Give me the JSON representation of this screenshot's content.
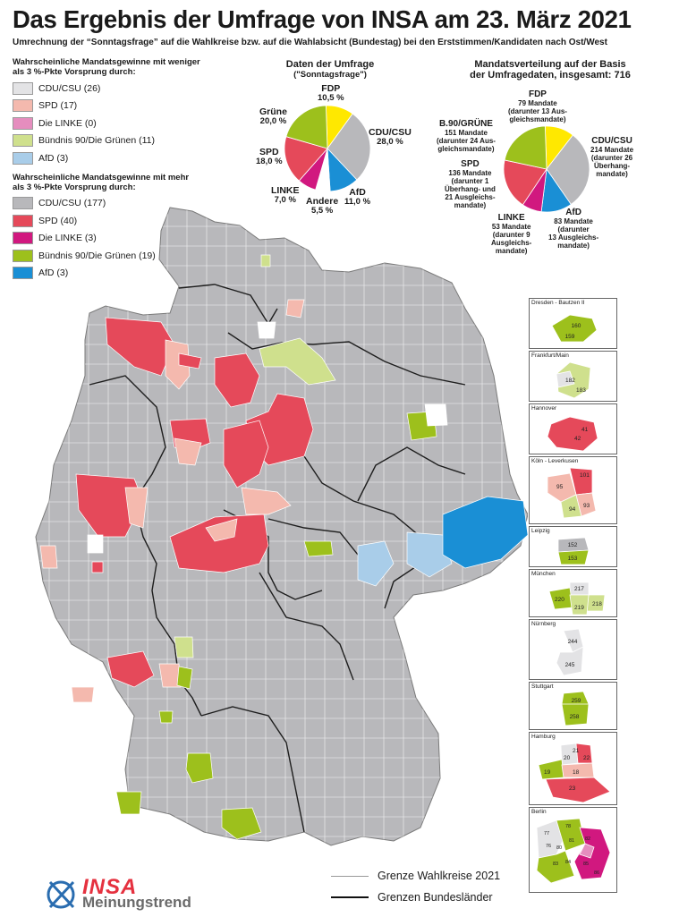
{
  "title": "Das Ergebnis der Umfrage von INSA am 23. März 2021",
  "subtitle": "Umrechnung der “Sonntagsfrage” auf die Wahlkreise bzw. auf die Wahlabsicht (Bundestag) bei den Erststimmen/Kandidaten nach Ost/West",
  "legend": {
    "under_heading": "Wahrscheinliche Mandatsgewinne mit weniger als 3 %-Pkte Vorsprung durch:",
    "under_items": [
      {
        "label": "CDU/CSU (26)",
        "color": "#e3e3e5"
      },
      {
        "label": "SPD (17)",
        "color": "#f4b9ae"
      },
      {
        "label": "Die LINKE (0)",
        "color": "#e58dbe"
      },
      {
        "label": "Bündnis 90/Die Grünen (11)",
        "color": "#cfe08d"
      },
      {
        "label": "AfD (3)",
        "color": "#a9cde9"
      }
    ],
    "over_heading": "Wahrscheinliche Mandatsgewinne mit mehr als 3 %-Pkte Vorsprung durch:",
    "over_items": [
      {
        "label": "CDU/CSU (177)",
        "color": "#b8b8bb"
      },
      {
        "label": "SPD (40)",
        "color": "#e5495a"
      },
      {
        "label": "Die LINKE (3)",
        "color": "#d1187f"
      },
      {
        "label": "Bündnis 90/Die Grünen (19)",
        "color": "#9dc01c"
      },
      {
        "label": "AfD (3)",
        "color": "#1a8fd5"
      }
    ]
  },
  "pie1": {
    "title_line1": "Daten der Umfrage",
    "title_line2": "(\"Sonntagsfrage\")",
    "labels": {
      "fdp": {
        "name": "FDP",
        "value": "10,5 %"
      },
      "cdu": {
        "name": "CDU/CSU",
        "value": "28,0 %"
      },
      "afd": {
        "name": "AfD",
        "value": "11,0 %"
      },
      "andere": {
        "name": "Andere",
        "value": "5,5 %"
      },
      "linke": {
        "name": "LINKE",
        "value": "7,0 %"
      },
      "spd": {
        "name": "SPD",
        "value": "18,0 %"
      },
      "gruene": {
        "name": "Grüne",
        "value": "20,0 %"
      }
    }
  },
  "pie2": {
    "title_line1": "Mandatsverteilung auf der Basis",
    "title_line2": "der Umfragedaten, insgesamt: 716",
    "labels": {
      "fdp": {
        "name": "FDP",
        "l1": "79 Mandate",
        "l2": "(darunter 13 Aus-",
        "l3": "gleichsmandate)"
      },
      "cdu": {
        "name": "CDU/CSU",
        "l1": "214 Mandate",
        "l2": "(darunter 26",
        "l3": "Überhang-",
        "l4": "mandate)"
      },
      "afd": {
        "name": "AfD",
        "l1": "83 Mandate",
        "l2": "(darunter",
        "l3": "13 Ausgleichs-",
        "l4": "mandate)"
      },
      "linke": {
        "name": "LINKE",
        "l1": "53 Mandate",
        "l2": "(darunter 9",
        "l3": "Ausgleichs-",
        "l4": "mandate)"
      },
      "spd": {
        "name": "SPD",
        "l1": "136 Mandate",
        "l2": "(darunter 1",
        "l3": "Überhang- und",
        "l4": "21 Ausgleichs-",
        "l5": "mandate)"
      },
      "gruene": {
        "name": "B.90/GRÜNE",
        "l1": "151 Mandate",
        "l2": "(darunter 24 Aus-",
        "l3": "gleichsmandate)"
      }
    }
  },
  "chart_data": [
    {
      "type": "pie",
      "title": "Daten der Umfrage (\"Sonntagsfrage\")",
      "categories": [
        "FDP",
        "CDU/CSU",
        "AfD",
        "Andere",
        "LINKE",
        "SPD",
        "Grüne"
      ],
      "values": [
        10.5,
        28.0,
        11.0,
        5.5,
        7.0,
        18.0,
        20.0
      ],
      "colors": [
        "#ffe800",
        "#b8b8bb",
        "#1a8fd5",
        "#ffffff",
        "#d1187f",
        "#e5495a",
        "#9dc01c"
      ]
    },
    {
      "type": "pie",
      "title": "Mandatsverteilung auf der Basis der Umfragedaten, insgesamt: 716",
      "categories": [
        "FDP",
        "CDU/CSU",
        "AfD",
        "LINKE",
        "SPD",
        "B.90/GRÜNE"
      ],
      "values": [
        79,
        214,
        83,
        53,
        136,
        151
      ],
      "colors": [
        "#ffe800",
        "#b8b8bb",
        "#1a8fd5",
        "#d1187f",
        "#e5495a",
        "#9dc01c"
      ]
    }
  ],
  "insets": [
    {
      "title": "Dresden - Bautzen II",
      "numbers": [
        "160",
        "159"
      ]
    },
    {
      "title": "Frankfurt/Main",
      "numbers": [
        "182",
        "183"
      ]
    },
    {
      "title": "Hannover",
      "numbers": [
        "41",
        "42"
      ]
    },
    {
      "title": "Köln - Leverkusen",
      "numbers": [
        "101",
        "95",
        "94",
        "93"
      ]
    },
    {
      "title": "Leipzig",
      "numbers": [
        "152",
        "153"
      ]
    },
    {
      "title": "München",
      "numbers": [
        "217",
        "220",
        "218",
        "219"
      ]
    },
    {
      "title": "Nürnberg",
      "numbers": [
        "244",
        "245"
      ]
    },
    {
      "title": "Stuttgart",
      "numbers": [
        "259",
        "258"
      ]
    },
    {
      "title": "Hamburg",
      "numbers": [
        "21",
        "20",
        "22",
        "19",
        "18",
        "23"
      ]
    },
    {
      "title": "Berlin",
      "numbers": [
        "77",
        "78",
        "76",
        "80",
        "81",
        "82",
        "83",
        "84",
        "85",
        "86"
      ]
    }
  ],
  "bottom_legend": {
    "wahlkreise": "Grenze Wahlkreise 2021",
    "bundeslaender": "Grenzen Bundesländer"
  },
  "logo": {
    "brand": "INSA",
    "tagline": "Meinungstrend"
  }
}
